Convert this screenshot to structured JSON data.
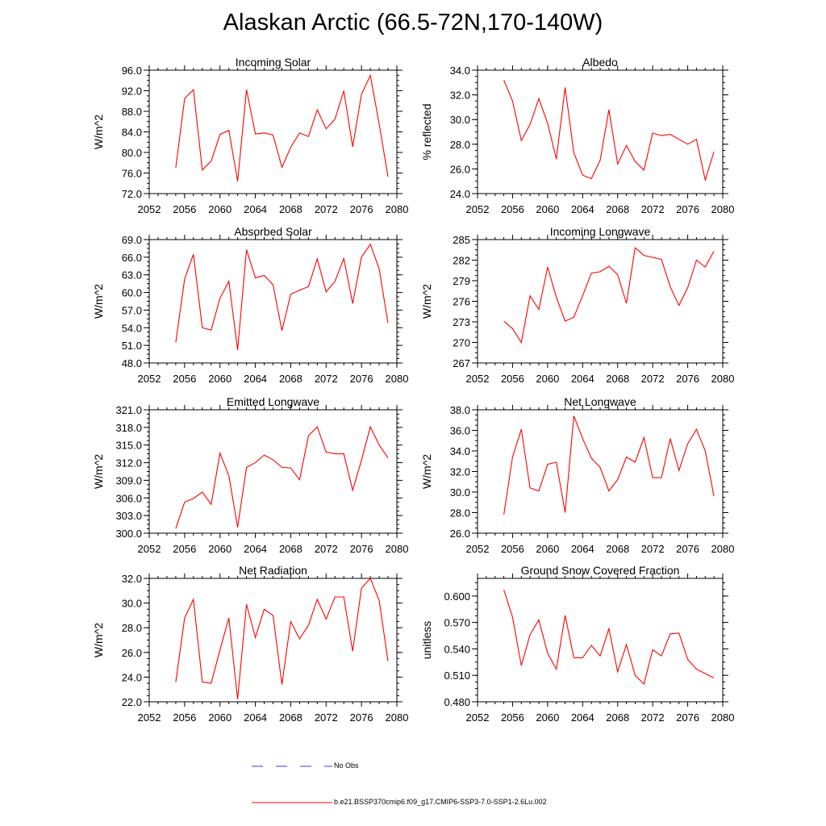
{
  "title": "Alaskan Arctic (66.5-72N,170-140W)",
  "legend": [
    {
      "label": "No Obs",
      "color": "#3b3bd6",
      "dash": "dashed"
    },
    {
      "label": "b.e21.BSSP370cmip6.f09_g17.CMIP6-SSP3-7.0-SSP1-2.6Lu.002",
      "color": "#ff0000",
      "dash": "solid"
    }
  ],
  "chart_data": [
    {
      "type": "line",
      "title": "Incoming Solar",
      "xlabel": "",
      "ylabel": "W/m^2",
      "xlim": [
        2052,
        2080
      ],
      "ylim": [
        72,
        96
      ],
      "xticks": [
        2052,
        2056,
        2060,
        2064,
        2068,
        2072,
        2076,
        2080
      ],
      "yticks": [
        "72.0",
        "76.0",
        "80.0",
        "84.0",
        "88.0",
        "92.0",
        "96.0"
      ],
      "series": [
        {
          "color": "#ff0000",
          "x": [
            2055,
            2056,
            2057,
            2058,
            2059,
            2060,
            2061,
            2062,
            2063,
            2064,
            2065,
            2066,
            2067,
            2068,
            2069,
            2070,
            2071,
            2072,
            2073,
            2074,
            2075,
            2076,
            2077,
            2078,
            2079
          ],
          "y": [
            77.0,
            90.5,
            92.2,
            76.6,
            78.3,
            83.5,
            84.3,
            74.4,
            92.2,
            83.6,
            83.8,
            83.4,
            77.1,
            81.0,
            83.8,
            83.1,
            88.3,
            84.6,
            86.5,
            92.0,
            81.1,
            91.3,
            95.0,
            85.5,
            75.3
          ]
        }
      ]
    },
    {
      "type": "line",
      "title": "Albedo",
      "xlabel": "",
      "ylabel": "% reflected",
      "xlim": [
        2052,
        2080
      ],
      "ylim": [
        24,
        34
      ],
      "xticks": [
        2052,
        2056,
        2060,
        2064,
        2068,
        2072,
        2076,
        2080
      ],
      "yticks": [
        "24.0",
        "26.0",
        "28.0",
        "30.0",
        "32.0",
        "34.0"
      ],
      "series": [
        {
          "color": "#ff0000",
          "x": [
            2055,
            2056,
            2057,
            2058,
            2059,
            2060,
            2061,
            2062,
            2063,
            2064,
            2065,
            2066,
            2067,
            2068,
            2069,
            2070,
            2071,
            2072,
            2073,
            2074,
            2075,
            2076,
            2077,
            2078,
            2079
          ],
          "y": [
            33.2,
            31.5,
            28.3,
            29.6,
            31.7,
            29.7,
            26.8,
            32.6,
            27.3,
            25.5,
            25.2,
            26.7,
            30.8,
            26.4,
            27.9,
            26.6,
            25.9,
            28.9,
            28.7,
            28.8,
            28.4,
            28.0,
            28.4,
            25.1,
            27.4
          ]
        }
      ]
    },
    {
      "type": "line",
      "title": "Absorbed Solar",
      "xlabel": "",
      "ylabel": "W/m^2",
      "xlim": [
        2052,
        2080
      ],
      "ylim": [
        48,
        69
      ],
      "xticks": [
        2052,
        2056,
        2060,
        2064,
        2068,
        2072,
        2076,
        2080
      ],
      "yticks": [
        "48.0",
        "51.0",
        "54.0",
        "57.0",
        "60.0",
        "63.0",
        "66.0",
        "69.0"
      ],
      "series": [
        {
          "color": "#ff0000",
          "x": [
            2055,
            2056,
            2057,
            2058,
            2059,
            2060,
            2061,
            2062,
            2063,
            2064,
            2065,
            2066,
            2067,
            2068,
            2069,
            2070,
            2071,
            2072,
            2073,
            2074,
            2075,
            2076,
            2077,
            2078,
            2079
          ],
          "y": [
            51.5,
            62.3,
            66.5,
            54.0,
            53.6,
            59.0,
            61.9,
            50.2,
            67.3,
            62.5,
            62.9,
            61.3,
            53.5,
            59.7,
            60.4,
            61.0,
            65.7,
            60.1,
            61.9,
            65.8,
            58.1,
            66.0,
            68.2,
            64.0,
            54.8
          ]
        }
      ]
    },
    {
      "type": "line",
      "title": "Incoming Longwave",
      "xlabel": "",
      "ylabel": "W/m^2",
      "xlim": [
        2052,
        2080
      ],
      "ylim": [
        267,
        285
      ],
      "xticks": [
        2052,
        2056,
        2060,
        2064,
        2068,
        2072,
        2076,
        2080
      ],
      "yticks": [
        "267",
        "270",
        "273",
        "276",
        "279",
        "282",
        "285"
      ],
      "series": [
        {
          "color": "#ff0000",
          "x": [
            2055,
            2056,
            2057,
            2058,
            2059,
            2060,
            2061,
            2062,
            2063,
            2064,
            2065,
            2066,
            2067,
            2068,
            2069,
            2070,
            2071,
            2072,
            2073,
            2074,
            2075,
            2076,
            2077,
            2078,
            2079
          ],
          "y": [
            273.1,
            272.0,
            270.0,
            276.8,
            274.8,
            281.0,
            276.6,
            273.1,
            273.7,
            276.8,
            280.1,
            280.3,
            281.1,
            279.9,
            275.7,
            283.8,
            282.7,
            282.4,
            282.1,
            278.1,
            275.4,
            278.0,
            282.0,
            281.0,
            283.3
          ]
        }
      ]
    },
    {
      "type": "line",
      "title": "Emitted Longwave",
      "xlabel": "",
      "ylabel": "W/m^2",
      "xlim": [
        2052,
        2080
      ],
      "ylim": [
        300,
        321
      ],
      "xticks": [
        2052,
        2056,
        2060,
        2064,
        2068,
        2072,
        2076,
        2080
      ],
      "yticks": [
        "300.0",
        "303.0",
        "306.0",
        "309.0",
        "312.0",
        "315.0",
        "318.0",
        "321.0"
      ],
      "series": [
        {
          "color": "#ff0000",
          "x": [
            2055,
            2056,
            2057,
            2058,
            2059,
            2060,
            2061,
            2062,
            2063,
            2064,
            2065,
            2066,
            2067,
            2068,
            2069,
            2070,
            2071,
            2072,
            2073,
            2074,
            2075,
            2076,
            2077,
            2078,
            2079
          ],
          "y": [
            300.8,
            305.3,
            305.9,
            307.0,
            304.9,
            313.6,
            309.8,
            301.0,
            311.2,
            312.0,
            313.3,
            312.5,
            311.2,
            311.1,
            309.1,
            316.6,
            318.1,
            313.8,
            313.5,
            313.5,
            307.3,
            312.4,
            318.1,
            315.0,
            312.8
          ]
        }
      ]
    },
    {
      "type": "line",
      "title": "Net Longwave",
      "xlabel": "",
      "ylabel": "W/m^2",
      "xlim": [
        2052,
        2080
      ],
      "ylim": [
        26,
        38
      ],
      "xticks": [
        2052,
        2056,
        2060,
        2064,
        2068,
        2072,
        2076,
        2080
      ],
      "yticks": [
        "26.0",
        "28.0",
        "30.0",
        "32.0",
        "34.0",
        "36.0",
        "38.0"
      ],
      "series": [
        {
          "color": "#ff0000",
          "x": [
            2055,
            2056,
            2057,
            2058,
            2059,
            2060,
            2061,
            2062,
            2063,
            2064,
            2065,
            2066,
            2067,
            2068,
            2069,
            2070,
            2071,
            2072,
            2073,
            2074,
            2075,
            2076,
            2077,
            2078,
            2079
          ],
          "y": [
            27.8,
            33.4,
            36.1,
            30.4,
            30.1,
            32.7,
            32.9,
            28.0,
            37.4,
            35.2,
            33.3,
            32.4,
            30.1,
            31.2,
            33.4,
            32.9,
            35.3,
            31.4,
            31.4,
            35.2,
            32.1,
            34.7,
            36.1,
            34.0,
            29.6
          ]
        }
      ]
    },
    {
      "type": "line",
      "title": "Net Radiation",
      "xlabel": "",
      "ylabel": "W/m^2",
      "xlim": [
        2052,
        2080
      ],
      "ylim": [
        22,
        32
      ],
      "xticks": [
        2052,
        2056,
        2060,
        2064,
        2068,
        2072,
        2076,
        2080
      ],
      "yticks": [
        "22.0",
        "24.0",
        "26.0",
        "28.0",
        "30.0",
        "32.0"
      ],
      "series": [
        {
          "color": "#ff0000",
          "x": [
            2055,
            2056,
            2057,
            2058,
            2059,
            2060,
            2061,
            2062,
            2063,
            2064,
            2065,
            2066,
            2067,
            2068,
            2069,
            2070,
            2071,
            2072,
            2073,
            2074,
            2075,
            2076,
            2077,
            2078,
            2079
          ],
          "y": [
            23.6,
            28.8,
            30.3,
            23.6,
            23.5,
            26.2,
            28.8,
            22.2,
            29.9,
            27.2,
            29.5,
            29.0,
            23.4,
            28.5,
            27.1,
            28.2,
            30.3,
            28.7,
            30.5,
            30.5,
            26.1,
            31.2,
            32.0,
            30.2,
            25.3
          ]
        }
      ]
    },
    {
      "type": "line",
      "title": "Ground Snow Covered Fraction",
      "xlabel": "",
      "ylabel": "unitless",
      "xlim": [
        2052,
        2080
      ],
      "ylim": [
        0.48,
        0.62
      ],
      "xticks": [
        2052,
        2056,
        2060,
        2064,
        2068,
        2072,
        2076,
        2080
      ],
      "yticks": [
        "0.480",
        "0.510",
        "0.540",
        "0.570",
        "0.600"
      ],
      "series": [
        {
          "color": "#ff0000",
          "x": [
            2055,
            2056,
            2057,
            2058,
            2059,
            2060,
            2061,
            2062,
            2063,
            2064,
            2065,
            2066,
            2067,
            2068,
            2069,
            2070,
            2071,
            2072,
            2073,
            2074,
            2075,
            2076,
            2077,
            2078,
            2079
          ],
          "y": [
            0.607,
            0.576,
            0.521,
            0.556,
            0.573,
            0.535,
            0.517,
            0.578,
            0.53,
            0.53,
            0.544,
            0.532,
            0.563,
            0.514,
            0.545,
            0.51,
            0.5,
            0.539,
            0.532,
            0.557,
            0.558,
            0.528,
            0.517,
            0.512,
            0.507
          ]
        }
      ]
    }
  ]
}
